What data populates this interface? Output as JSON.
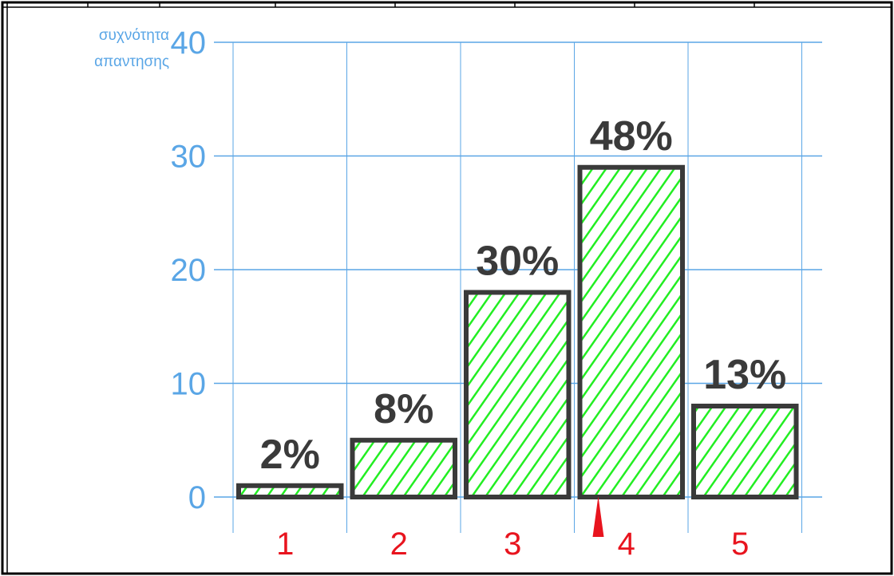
{
  "chart_data": {
    "type": "bar",
    "categories": [
      "1",
      "2",
      "3",
      "4",
      "5"
    ],
    "values": [
      1,
      5,
      18,
      29,
      8
    ],
    "data_labels": [
      "2%",
      "8%",
      "30%",
      "48%",
      "13%"
    ],
    "ylabel_lines": [
      "συχνότητα",
      "απαντησης"
    ],
    "yticks": [
      0,
      10,
      20,
      30,
      40
    ],
    "ylim": [
      0,
      40
    ],
    "grid": true,
    "marker_category": "4",
    "colors": {
      "bar_fill": "#22ee22",
      "bar_stroke": "#3a3a3a",
      "grid": "#5aa6e6",
      "axis_text": "#5aa6e6",
      "category_text": "#e8141e",
      "marker": "#e8141e",
      "data_label": "#3a3a3a"
    }
  }
}
